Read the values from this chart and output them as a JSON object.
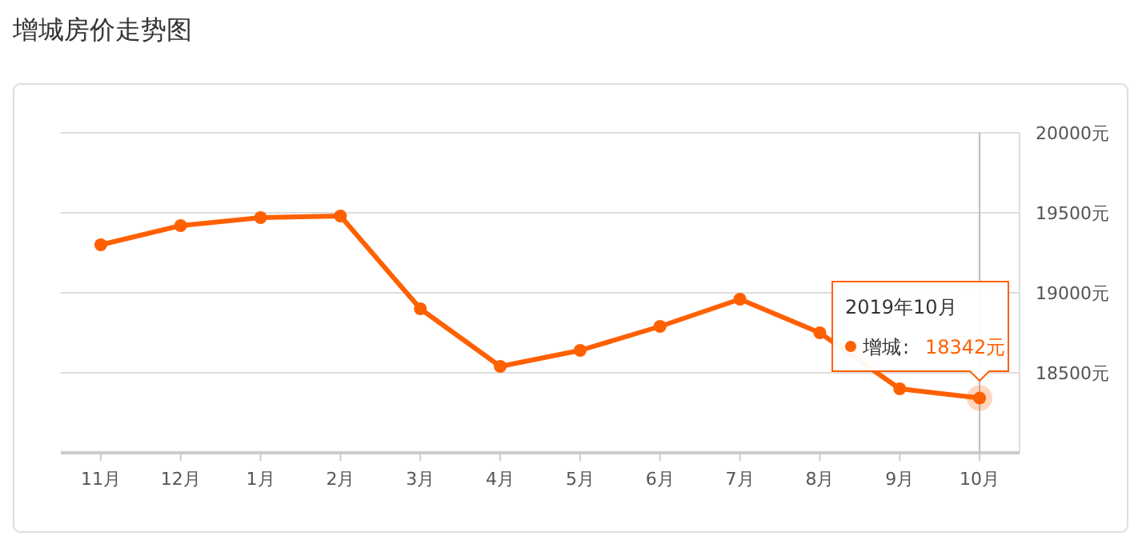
{
  "chart_data": {
    "type": "line",
    "title": "增城房价走势图",
    "categories": [
      "11月",
      "12月",
      "1月",
      "2月",
      "3月",
      "4月",
      "5月",
      "6月",
      "7月",
      "8月",
      "9月",
      "10月"
    ],
    "series": [
      {
        "name": "增城",
        "color": "#ff6000",
        "values": [
          19300,
          19420,
          19470,
          19480,
          18900,
          18540,
          18640,
          18790,
          18960,
          18750,
          18400,
          18342
        ]
      }
    ],
    "ylim": [
      18000,
      20000
    ],
    "yticks": [
      {
        "value": 18500,
        "label": "18500元"
      },
      {
        "value": 19000,
        "label": "19000元"
      },
      {
        "value": 19500,
        "label": "19500元"
      },
      {
        "value": 20000,
        "label": "20000元"
      }
    ],
    "grid": "y",
    "legend": "right",
    "marker": "circle",
    "line_style": "solid",
    "ref_lines": [
      {
        "axis": "x",
        "value": "10月",
        "color": "#bbbbbb"
      }
    ],
    "annotations": [
      "2019年10月",
      ":",
      "18342元"
    ]
  }
}
